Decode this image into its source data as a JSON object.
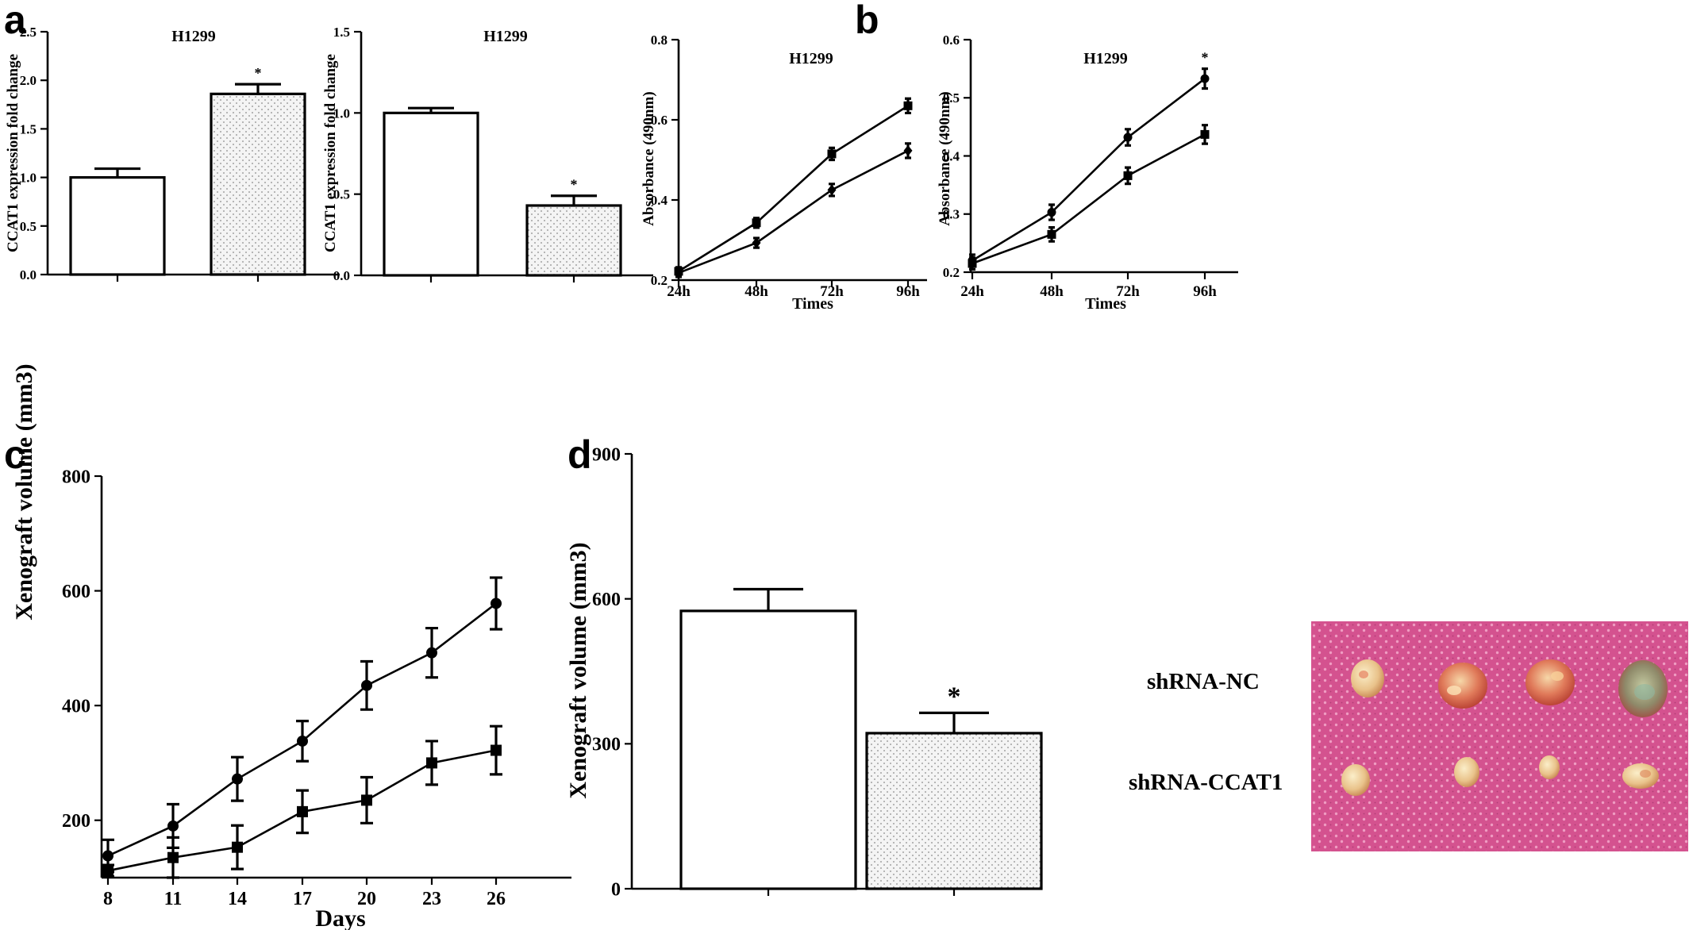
{
  "panel_labels": [
    "a",
    "b",
    "c",
    "d"
  ],
  "photo": {
    "row_labels": [
      "shRNA-NC",
      "shRNA-CCAT1"
    ]
  },
  "colors": {
    "ink": "#000000",
    "stipple_fill": "#f4f4f4",
    "photo_background": "#d4528f"
  },
  "chart_data": [
    {
      "id": "a1",
      "type": "bar",
      "title": "H1299",
      "ylabel": "CCAT1 expression fold change",
      "ylim": [
        0,
        2.5
      ],
      "yticks": [
        "0.0",
        "0.5",
        "1.0",
        "1.5",
        "2.0",
        "2.5"
      ],
      "series": [
        {
          "values": [
            1.0,
            1.86
          ],
          "errors": [
            0.09,
            0.1
          ],
          "fills": [
            "white",
            "stipple"
          ]
        }
      ],
      "annotations": [
        "",
        "*"
      ]
    },
    {
      "id": "a2",
      "type": "bar",
      "title": "H1299",
      "ylabel": "CCAT1 expression fold change",
      "ylim": [
        0,
        1.5
      ],
      "yticks": [
        "0.0",
        "0.5",
        "1.0",
        "1.5"
      ],
      "series": [
        {
          "values": [
            1.0,
            0.43
          ],
          "errors": [
            0.03,
            0.06
          ],
          "fills": [
            "white",
            "stipple"
          ]
        }
      ],
      "annotations": [
        "",
        "*"
      ]
    },
    {
      "id": "b1",
      "type": "line",
      "title": "H1299",
      "xlabel": "Times",
      "ylabel": "Absorbance (490nm)",
      "categories": [
        "24h",
        "48h",
        "72h",
        "96h"
      ],
      "ylim": [
        0.2,
        0.8
      ],
      "yticks": [
        "0.2",
        "0.4",
        "0.6",
        "0.8"
      ],
      "series": [
        {
          "marker": "square",
          "values": [
            0.222,
            0.343,
            0.515,
            0.635
          ],
          "errors": [
            0.01,
            0.012,
            0.015,
            0.018
          ]
        },
        {
          "marker": "diamond",
          "values": [
            0.218,
            0.293,
            0.425,
            0.523
          ],
          "errors": [
            0.01,
            0.012,
            0.015,
            0.018
          ]
        }
      ]
    },
    {
      "id": "b2",
      "type": "line",
      "title": "H1299",
      "xlabel": "Times",
      "ylabel": "Absorbance (490nm)",
      "categories": [
        "24h",
        "48h",
        "72h",
        "96h"
      ],
      "ylim": [
        0.2,
        0.6
      ],
      "yticks": [
        "0.2",
        "0.3",
        "0.4",
        "0.5",
        "0.6"
      ],
      "series": [
        {
          "marker": "circle",
          "values": [
            0.22,
            0.303,
            0.432,
            0.533
          ],
          "errors": [
            0.01,
            0.013,
            0.014,
            0.017
          ]
        },
        {
          "marker": "square",
          "values": [
            0.215,
            0.265,
            0.366,
            0.437
          ],
          "errors": [
            0.01,
            0.012,
            0.014,
            0.016
          ]
        }
      ],
      "annotations": [
        "",
        "",
        "",
        "*"
      ]
    },
    {
      "id": "c",
      "type": "line",
      "xlabel": "Days",
      "ylabel": "Xenograft volume (mm3)",
      "categories": [
        "8",
        "11",
        "14",
        "17",
        "20",
        "23",
        "26"
      ],
      "ylim": [
        100,
        800
      ],
      "yticks": [
        "200",
        "400",
        "600",
        "800"
      ],
      "series": [
        {
          "marker": "circle",
          "values": [
            138,
            190,
            272,
            338,
            435,
            492,
            578
          ],
          "errors": [
            28,
            38,
            38,
            35,
            42,
            43,
            45
          ]
        },
        {
          "marker": "square",
          "values": [
            112,
            135,
            153,
            215,
            235,
            300,
            322
          ],
          "errors": [
            10,
            35,
            38,
            37,
            40,
            38,
            42
          ]
        }
      ]
    },
    {
      "id": "d",
      "type": "bar",
      "ylabel": "Xenograft volume (mm3)",
      "ylim": [
        0,
        900
      ],
      "yticks": [
        "0",
        "300",
        "600",
        "900"
      ],
      "series": [
        {
          "values": [
            575,
            322
          ],
          "errors": [
            45,
            42
          ],
          "fills": [
            "white",
            "stipple"
          ]
        }
      ],
      "annotations": [
        "",
        "*"
      ]
    }
  ]
}
